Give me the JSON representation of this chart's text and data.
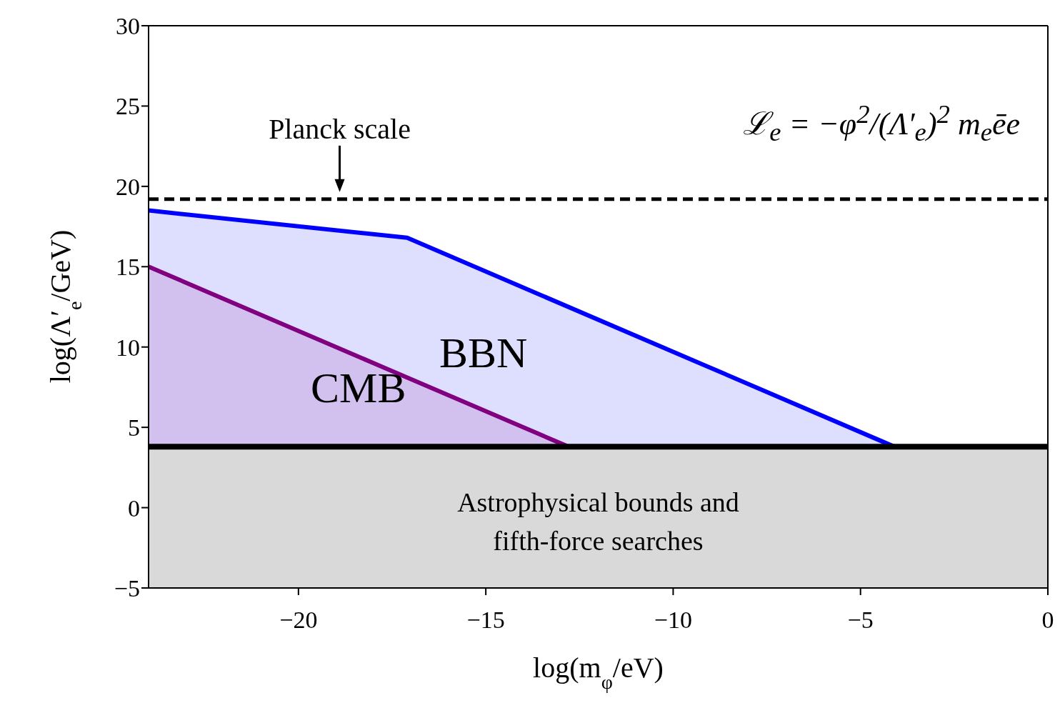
{
  "chart_data": {
    "type": "area",
    "xlabel": "log(m$_{φ}$/eV)",
    "ylabel": "log(Λ′$_{e}$/GeV)",
    "series": [
      {
        "name": "BBN",
        "color": "#0000ff",
        "x": [
          -24,
          -17.1,
          -4.1
        ],
        "values": [
          18.5,
          16.8,
          3.8
        ]
      },
      {
        "name": "CMB",
        "color": "#800080",
        "x": [
          -24,
          -12.8
        ],
        "values": [
          15,
          3.8
        ]
      }
    ],
    "xlim": [
      -24,
      0
    ],
    "xticks": [
      -20,
      -15,
      -10,
      -5,
      0
    ],
    "ylim": [
      -5,
      30
    ],
    "yticks": [
      -5,
      0,
      5,
      10,
      15,
      20,
      25,
      30
    ],
    "bands": [
      {
        "axis": "y",
        "from": -5,
        "to": 3.8,
        "label": "Astrophysical bounds and fifth-force searches",
        "color": "#d9d9d9"
      }
    ],
    "ref_lines": [
      {
        "axis": "y",
        "value": 3.8,
        "color": "#000000"
      },
      {
        "axis": "y",
        "value": 19.2,
        "color": "#000000",
        "line_style": "dashed"
      }
    ],
    "annotations": [
      {
        "text": "Planck scale",
        "x": -18.9,
        "y": 19.2
      },
      "ℒ$_{e}$ = −φ$^{2}$/(Λ′$_{e}$)$^{2}$ m$_{e}$ēe"
    ],
    "marker": "none"
  }
}
